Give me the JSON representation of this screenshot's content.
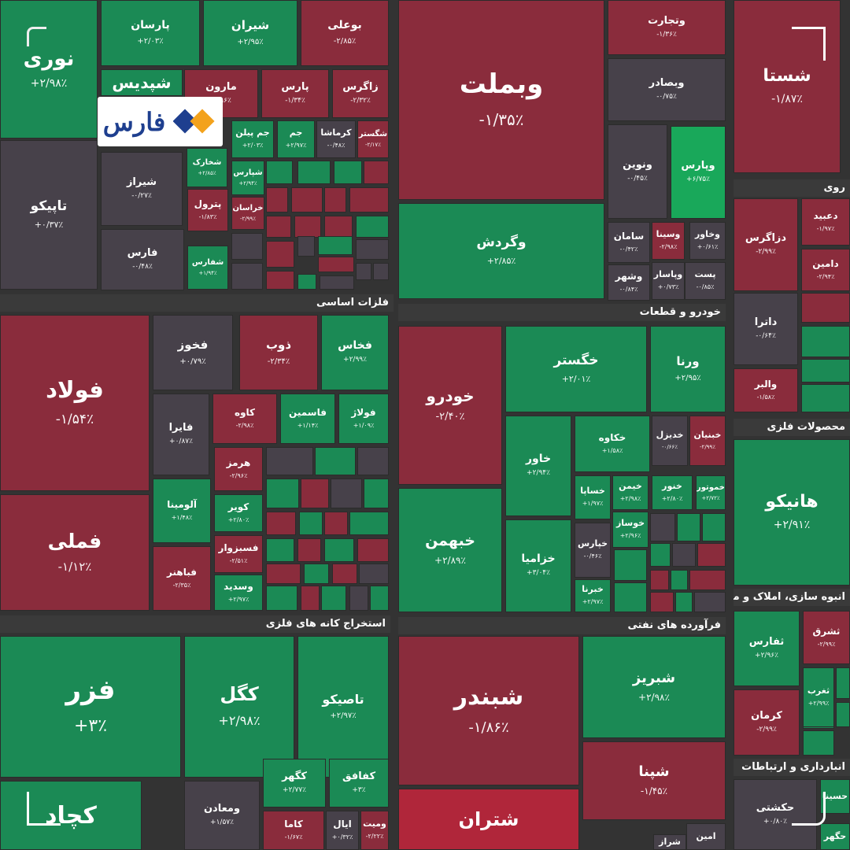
{
  "brand": {
    "logo_text": "فارس"
  },
  "colors": {
    "gain": "#1b8a55",
    "gain_strong": "#19a85a",
    "loss": "#8a2c3c",
    "loss_strong": "#b0263a",
    "neutral": "#47414a",
    "bg": "#333333"
  },
  "sectors": [
    {
      "label": "فلزات اساسی"
    },
    {
      "label": "خودرو و قطعات"
    },
    {
      "label": "استخراج کانه های فلزی"
    },
    {
      "label": "فرآورده های نفتی"
    },
    {
      "label": "روی"
    },
    {
      "label": "محصولات فلزی"
    },
    {
      "label": "انبوه سازی، املاک و مستغلات"
    },
    {
      "label": "انبارداری و ارتباطات"
    }
  ],
  "tiles": [
    {
      "name": "نوری",
      "change": "+۲/۹۸٪",
      "tone": "gain"
    },
    {
      "name": "پارسان",
      "change": "+۲/۰۳٪",
      "tone": "gain"
    },
    {
      "name": "شیران",
      "change": "+۲/۹۵٪",
      "tone": "gain"
    },
    {
      "name": "بوعلی",
      "change": "-۲/۸۵٪",
      "tone": "loss"
    },
    {
      "name": "شپدیس",
      "change": "",
      "tone": "gain"
    },
    {
      "name": "مارون",
      "change": "-۱/۹۶٪",
      "tone": "loss"
    },
    {
      "name": "پارس",
      "change": "-۱/۳۴٪",
      "tone": "loss"
    },
    {
      "name": "زاگرس",
      "change": "-۲/۳۲٪",
      "tone": "loss"
    },
    {
      "name": "جم پیلن",
      "change": "+۲/۰۳٪",
      "tone": "gain"
    },
    {
      "name": "جم",
      "change": "+۲/۹۷٪",
      "tone": "gain"
    },
    {
      "name": "کرماشا",
      "change": "-۰/۴۸٪",
      "tone": "neutral"
    },
    {
      "name": "شگستر",
      "change": "-۲/۱۷٪",
      "tone": "loss"
    },
    {
      "name": "شخارک",
      "change": "+۲/۸۵٪",
      "tone": "gain"
    },
    {
      "name": "شپارس",
      "change": "+۲/۹۴٪",
      "tone": "gain"
    },
    {
      "name": "خراسان",
      "change": "-۲/۹۹٪",
      "tone": "loss"
    },
    {
      "name": "تاپیکو",
      "change": "+۰/۳۷٪",
      "tone": "neutral"
    },
    {
      "name": "شیراز",
      "change": "-۰/۲۷٪",
      "tone": "neutral"
    },
    {
      "name": "پترول",
      "change": "-۱/۸۳٪",
      "tone": "loss"
    },
    {
      "name": "فارس",
      "change": "-۰/۴۸٪",
      "tone": "neutral"
    },
    {
      "name": "شفارس",
      "change": "+۱/۹۴٪",
      "tone": "gain"
    },
    {
      "name": "وبملت",
      "change": "-۱/۳۵٪",
      "tone": "loss"
    },
    {
      "name": "وگردش",
      "change": "+۲/۸۵٪",
      "tone": "gain"
    },
    {
      "name": "وتجارت",
      "change": "-۱/۳۶٪",
      "tone": "loss"
    },
    {
      "name": "وبصادر",
      "change": "-۰/۷۵٪",
      "tone": "neutral"
    },
    {
      "name": "ونوین",
      "change": "-۰/۴۵٪",
      "tone": "neutral"
    },
    {
      "name": "وپارس",
      "change": "+۶/۷۵٪",
      "tone": "gain_strong"
    },
    {
      "name": "سامان",
      "change": "-۰/۴۲٪",
      "tone": "neutral"
    },
    {
      "name": "وسینا",
      "change": "-۲/۹۸٪",
      "tone": "loss"
    },
    {
      "name": "وخاور",
      "change": "+۰/۶۱٪",
      "tone": "neutral"
    },
    {
      "name": "وشهر",
      "change": "-۰/۸۴٪",
      "tone": "neutral"
    },
    {
      "name": "وپاسار",
      "change": "+۰/۷۳٪",
      "tone": "neutral"
    },
    {
      "name": "پست",
      "change": "-۰/۸۵٪",
      "tone": "neutral"
    },
    {
      "name": "شستا",
      "change": "-۱/۸۷٪",
      "tone": "loss"
    },
    {
      "name": "دعبید",
      "change": "-۱/۹۷٪",
      "tone": "loss"
    },
    {
      "name": "دزاگرس",
      "change": "-۲/۹۹٪",
      "tone": "loss"
    },
    {
      "name": "دامین",
      "change": "-۲/۹۴٪",
      "tone": "loss"
    },
    {
      "name": "داترا",
      "change": "-۰/۶۴٪",
      "tone": "neutral"
    },
    {
      "name": "والبر",
      "change": "-۱/۵۸٪",
      "tone": "loss"
    },
    {
      "name": "فولاد",
      "change": "-۱/۵۴٪",
      "tone": "loss"
    },
    {
      "name": "فملی",
      "change": "-۱/۱۲٪",
      "tone": "loss"
    },
    {
      "name": "فخوز",
      "change": "+۰/۷۹٪",
      "tone": "neutral"
    },
    {
      "name": "ذوب",
      "change": "-۲/۳۴٪",
      "tone": "loss"
    },
    {
      "name": "فخاس",
      "change": "+۲/۹۹٪",
      "tone": "gain"
    },
    {
      "name": "فایرا",
      "change": "+۰/۸۷٪",
      "tone": "neutral"
    },
    {
      "name": "کاوه",
      "change": "-۲/۹۸٪",
      "tone": "loss"
    },
    {
      "name": "فاسمین",
      "change": "+۱/۱۴٪",
      "tone": "gain"
    },
    {
      "name": "فولاژ",
      "change": "+۱/۰۹٪",
      "tone": "gain"
    },
    {
      "name": "هرمز",
      "change": "-۲/۹۶٪",
      "tone": "loss"
    },
    {
      "name": "آلومینا",
      "change": "+۱/۴۸٪",
      "tone": "gain"
    },
    {
      "name": "کویر",
      "change": "+۲/۸۰٪",
      "tone": "gain"
    },
    {
      "name": "فسبزوار",
      "change": "-۲/۵۱٪",
      "tone": "loss"
    },
    {
      "name": "فباهنر",
      "change": "-۲/۳۵٪",
      "tone": "loss"
    },
    {
      "name": "وسدید",
      "change": "+۲/۹۷٪",
      "tone": "gain"
    },
    {
      "name": "خودرو",
      "change": "-۲/۴۰٪",
      "tone": "loss"
    },
    {
      "name": "خبهمن",
      "change": "+۲/۸۹٪",
      "tone": "gain"
    },
    {
      "name": "خگستر",
      "change": "+۲/۰۱٪",
      "tone": "gain"
    },
    {
      "name": "ورنا",
      "change": "+۲/۹۵٪",
      "tone": "gain"
    },
    {
      "name": "خاور",
      "change": "+۲/۹۴٪",
      "tone": "gain"
    },
    {
      "name": "خکاوه",
      "change": "+۱/۵۸٪",
      "tone": "gain"
    },
    {
      "name": "خدیزل",
      "change": "-۰/۶۶٪",
      "tone": "neutral"
    },
    {
      "name": "خبنیان",
      "change": "-۲/۹۹٪",
      "tone": "loss"
    },
    {
      "name": "خساپا",
      "change": "+۱/۹۷٪",
      "tone": "gain"
    },
    {
      "name": "خیمن",
      "change": "+۲/۹۸٪",
      "tone": "gain"
    },
    {
      "name": "خنور",
      "change": "+۲/۸۰٪",
      "tone": "gain"
    },
    {
      "name": "خموتور",
      "change": "+۲/۷۲٪",
      "tone": "gain"
    },
    {
      "name": "خوساز",
      "change": "+۲/۹۶٪",
      "tone": "gain"
    },
    {
      "name": "خزامیا",
      "change": "+۳/۰۴٪",
      "tone": "gain"
    },
    {
      "name": "خپارس",
      "change": "-۰/۴۶٪",
      "tone": "neutral"
    },
    {
      "name": "خبرنا",
      "change": "+۲/۹۷٪",
      "tone": "gain"
    },
    {
      "name": "هانیکو",
      "change": "+۲/۹۱٪",
      "tone": "gain"
    },
    {
      "name": "فزر",
      "change": "+۳٪",
      "tone": "gain"
    },
    {
      "name": "کگل",
      "change": "+۲/۹۸٪",
      "tone": "gain"
    },
    {
      "name": "تاصیکو",
      "change": "+۲/۹۷٪",
      "tone": "gain"
    },
    {
      "name": "کچاد",
      "change": "",
      "tone": "gain"
    },
    {
      "name": "ومعادن",
      "change": "+۱/۵۷٪",
      "tone": "neutral"
    },
    {
      "name": "کگهر",
      "change": "+۲/۷۷٪",
      "tone": "gain"
    },
    {
      "name": "کفافق",
      "change": "+۳٪",
      "tone": "gain"
    },
    {
      "name": "کاما",
      "change": "-۱/۶۷٪",
      "tone": "loss"
    },
    {
      "name": "ایال",
      "change": "+۰/۳۲٪",
      "tone": "neutral"
    },
    {
      "name": "ومیت",
      "change": "-۲/۲۲٪",
      "tone": "loss"
    },
    {
      "name": "شبندر",
      "change": "-۱/۸۶٪",
      "tone": "loss"
    },
    {
      "name": "شبریز",
      "change": "+۲/۹۸٪",
      "tone": "gain"
    },
    {
      "name": "شپنا",
      "change": "-۱/۴۵٪",
      "tone": "loss"
    },
    {
      "name": "شتران",
      "change": "",
      "tone": "loss_strong"
    },
    {
      "name": "امین",
      "change": "",
      "tone": "neutral"
    },
    {
      "name": "شراز",
      "change": "",
      "tone": "neutral"
    },
    {
      "name": "ثفارس",
      "change": "+۲/۹۶٪",
      "tone": "gain"
    },
    {
      "name": "ثشرق",
      "change": "-۲/۹۹٪",
      "tone": "loss"
    },
    {
      "name": "کرمان",
      "change": "-۲/۹۹٪",
      "tone": "loss"
    },
    {
      "name": "ثغرب",
      "change": "+۲/۹۹٪",
      "tone": "gain"
    },
    {
      "name": "حکشتی",
      "change": "+۰/۸۰٪",
      "tone": "neutral"
    },
    {
      "name": "حسینا",
      "change": "",
      "tone": "gain"
    },
    {
      "name": "حگهر",
      "change": "",
      "tone": "gain"
    }
  ]
}
